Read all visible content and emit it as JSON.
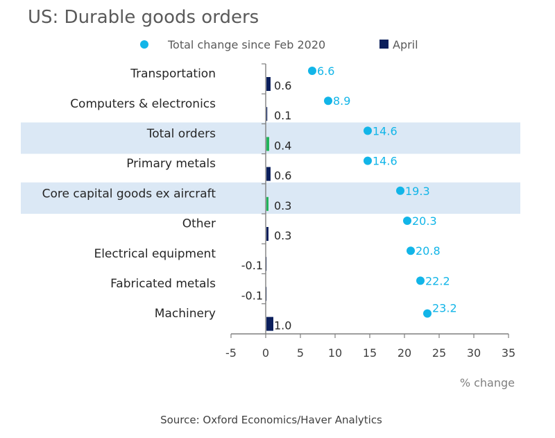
{
  "chart_data": {
    "type": "bar",
    "title": "US: Durable goods orders",
    "xlabel": "% change",
    "ylabel": "",
    "xlim": [
      -5,
      35
    ],
    "xticks": [
      -5,
      0,
      5,
      10,
      15,
      20,
      25,
      30,
      35
    ],
    "orientation": "horizontal",
    "legend_position": "top",
    "categories": [
      "Transportation",
      "Computers & electronics",
      "Total orders",
      "Primary metals",
      "Core capital goods ex aircraft",
      "Other",
      "Electrical equipment",
      "Fabricated metals",
      "Machinery"
    ],
    "highlighted_categories": [
      "Total orders",
      "Core capital goods ex aircraft"
    ],
    "series": [
      {
        "name": "Total change since Feb 2020",
        "type": "scatter",
        "color": "#12b5e8",
        "values": [
          6.6,
          8.9,
          14.6,
          14.6,
          19.3,
          20.3,
          20.8,
          22.2,
          23.2
        ],
        "labels": [
          "6.6",
          "8.9",
          "14.6",
          "14.6",
          "19.3",
          "20.3",
          "20.8",
          "22.2",
          "23.2"
        ]
      },
      {
        "name": "April",
        "type": "bar",
        "color": "#0b1f5c",
        "highlight_color": "#21b45a",
        "values": [
          0.6,
          0.1,
          0.4,
          0.6,
          0.3,
          0.3,
          -0.1,
          -0.1,
          1.0
        ],
        "labels": [
          "0.6",
          "0.1",
          "0.4",
          "0.6",
          "0.3",
          "0.3",
          "-0.1",
          "-0.1",
          "1.0"
        ]
      }
    ],
    "source": "Source: Oxford Economics/Haver Analytics"
  },
  "colors": {
    "highlight_band": "#dbe8f5",
    "axis": "#7f7f7f",
    "dot": "#12b5e8",
    "bar": "#0b1f5c",
    "bar_highlight": "#21b45a"
  }
}
